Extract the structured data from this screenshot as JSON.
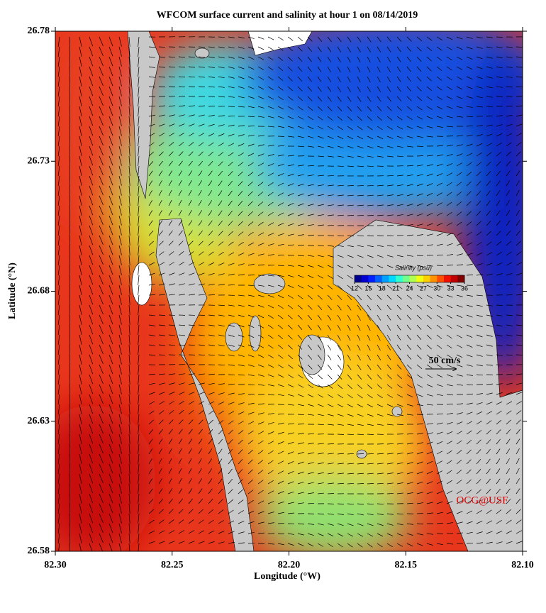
{
  "title": "WFCOM surface current and salinity at hour 1 on 08/14/2019",
  "x_label": "Longitude (°W)",
  "y_label": "Latitude (°N)",
  "xlim": [
    82.3,
    82.1
  ],
  "xticks": [
    {
      "value": 82.3,
      "label": "82.30"
    },
    82.25,
    {
      "value": 82.2,
      "label": "82.20"
    },
    82.15,
    {
      "value": 82.1,
      "label": "82.10"
    }
  ],
  "ylim": [
    26.58,
    26.78
  ],
  "yticks": [
    26.58,
    26.63,
    26.68,
    26.73,
    26.78
  ],
  "colorbar": {
    "title": "Salinity (psu)",
    "lim": [
      12,
      36
    ],
    "ticks": [
      12,
      15,
      18,
      21,
      24,
      27,
      30,
      33,
      36
    ],
    "colors": [
      "#00008f",
      "#0000d0",
      "#0020ff",
      "#0060ff",
      "#00a0ff",
      "#00d8ff",
      "#30ffcf",
      "#70ff8f",
      "#b0ff50",
      "#f0ff10",
      "#ffd000",
      "#ff9000",
      "#ff5000",
      "#f01000",
      "#c00000",
      "#800000"
    ]
  },
  "scale_label": "50 cm/s",
  "credit": "OCG@USF"
}
